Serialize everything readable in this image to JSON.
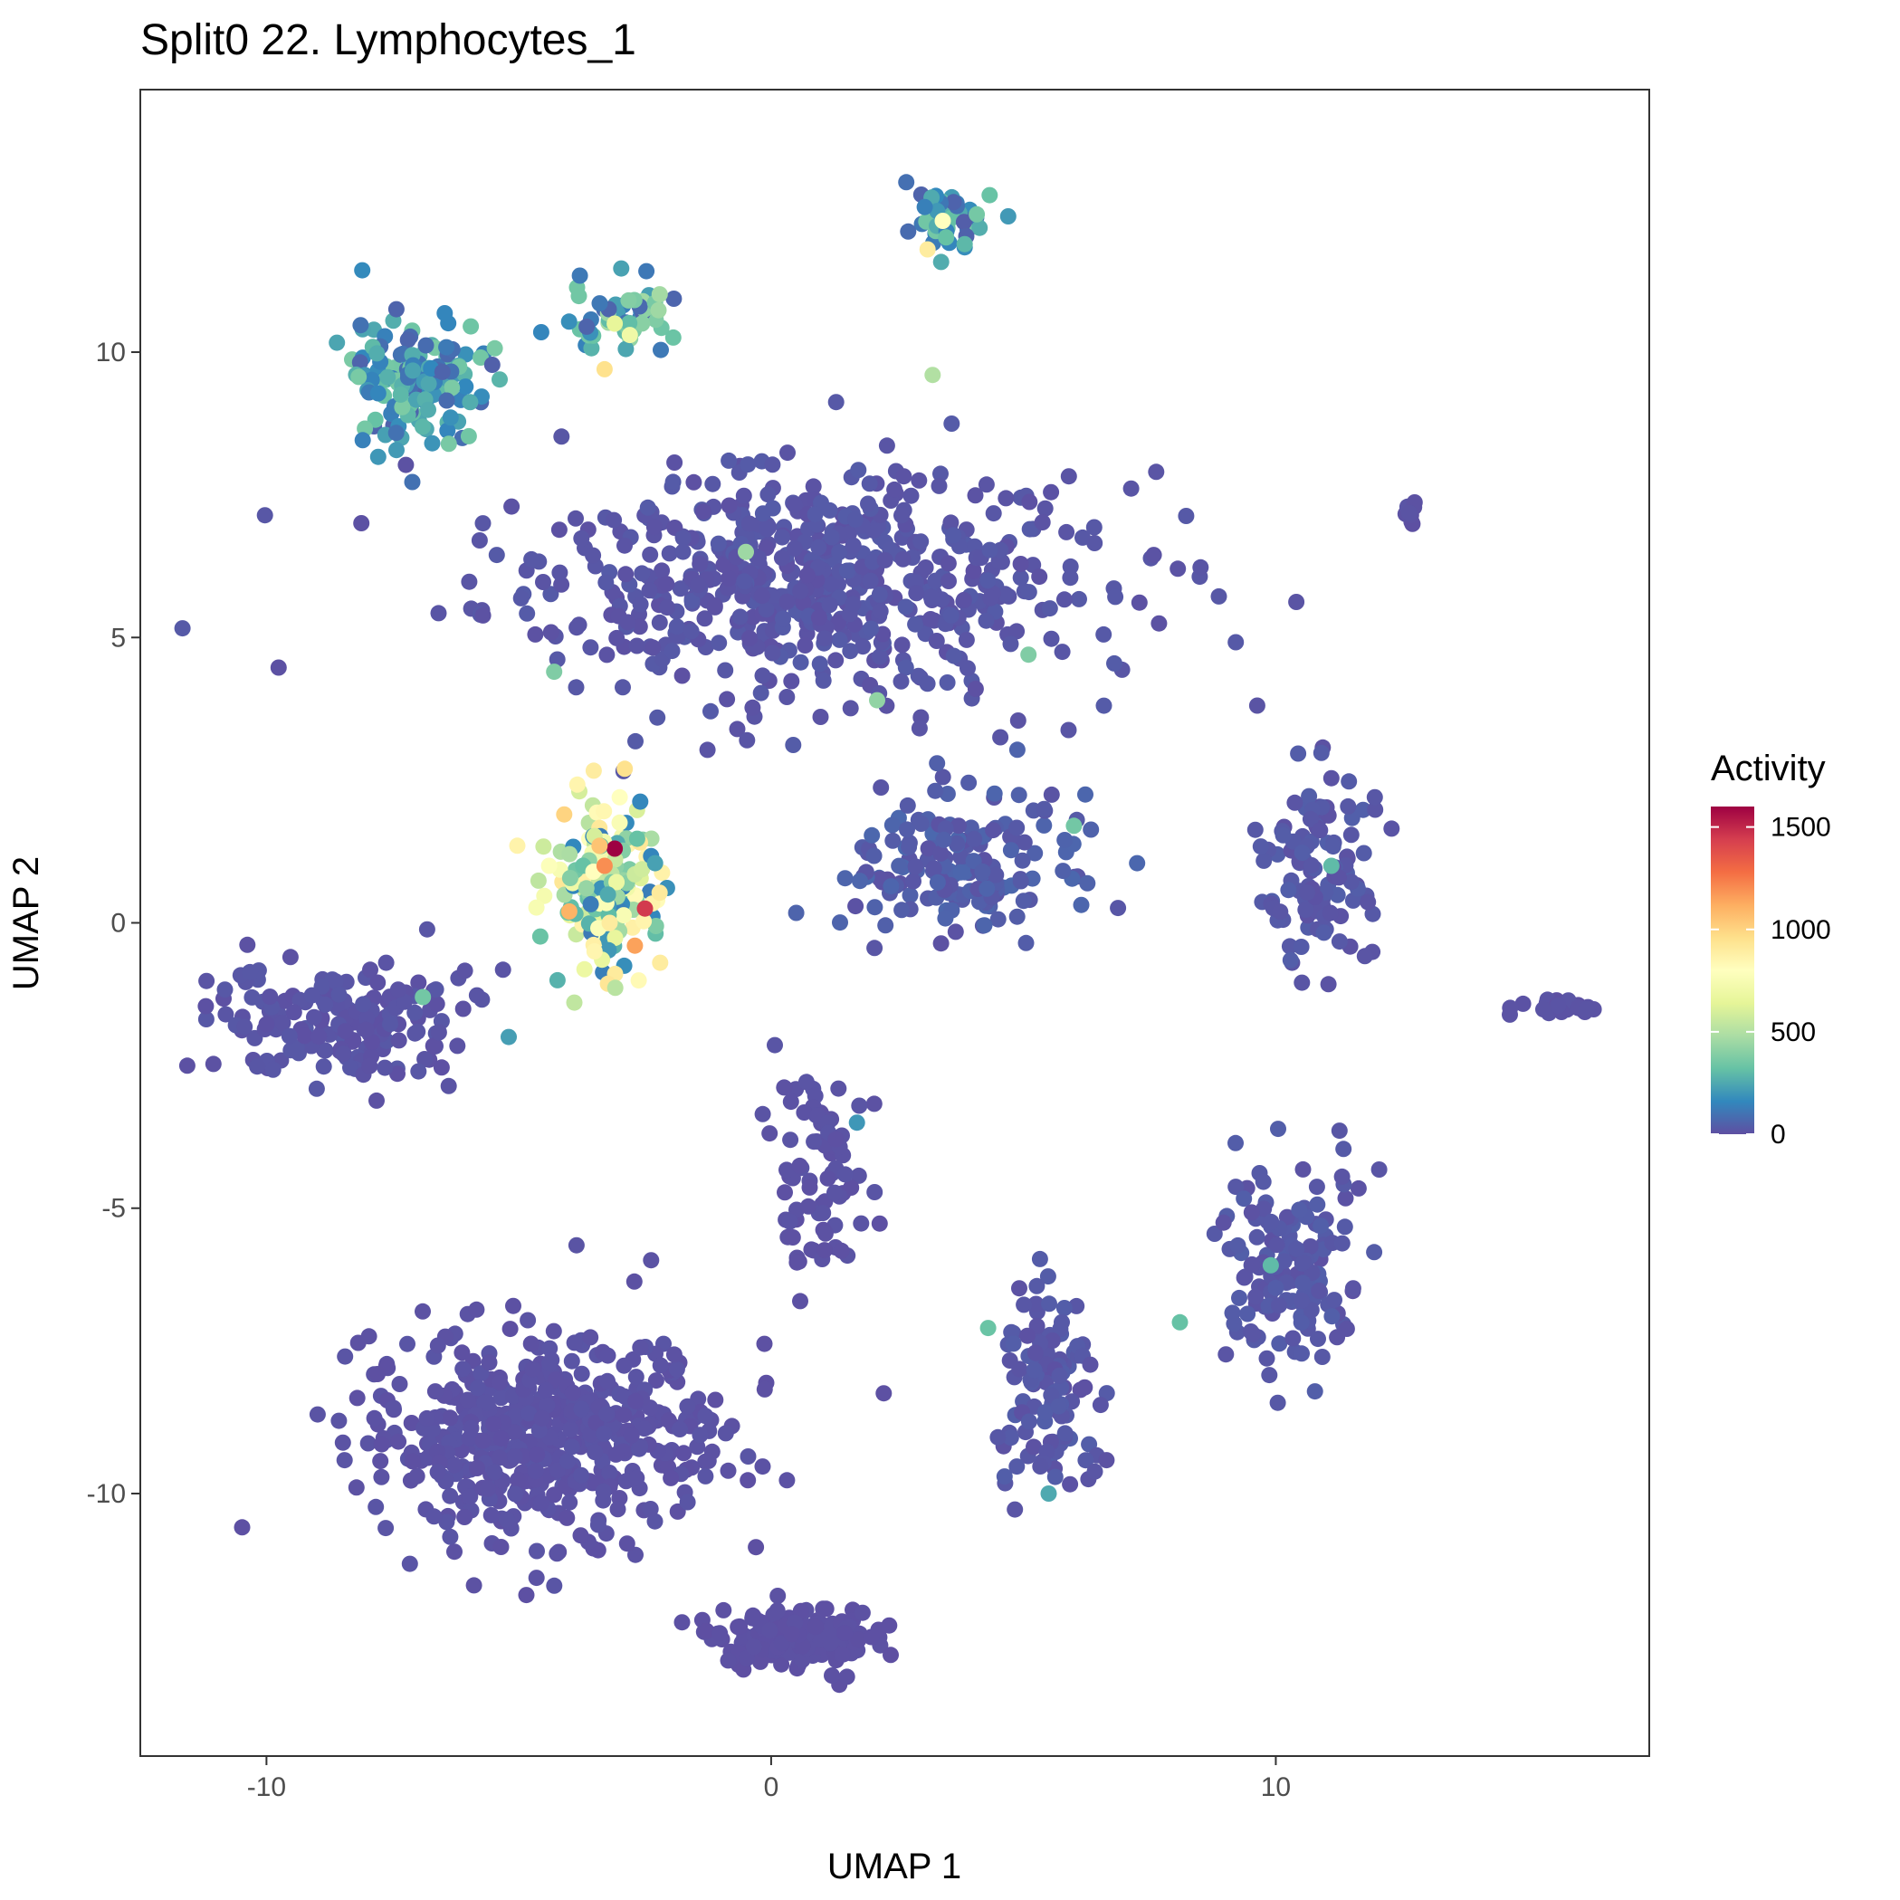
{
  "chart_data": {
    "type": "scatter",
    "title": "Split0 22. Lymphocytes_1",
    "xlabel": "UMAP 1",
    "ylabel": "UMAP 2",
    "xlim": [
      -12.5,
      17.4
    ],
    "ylim": [
      -14.6,
      14.6
    ],
    "xticks": [
      -10,
      0,
      10
    ],
    "xtick_labels": [
      "-10",
      "0",
      "10"
    ],
    "yticks": [
      -10,
      -5,
      0,
      5,
      10
    ],
    "ytick_labels": [
      "-10",
      "-5",
      "0",
      "5",
      "10"
    ],
    "grid": false,
    "color_variable": "Activity",
    "color_range": [
      0,
      1600
    ],
    "colorbar_ticks": [
      0,
      500,
      1000,
      1500
    ],
    "colorbar_tick_labels": [
      "0",
      "500",
      "1000",
      "1500"
    ],
    "colormap": "Spectral",
    "legend_position": "right",
    "clusters": [
      {
        "name": "central-large",
        "center": [
          0.5,
          6.0
        ],
        "spread": [
          5.5,
          1.8
        ],
        "n": 620,
        "activity": 20
      },
      {
        "name": "left-upper",
        "center": [
          -7.0,
          9.5
        ],
        "spread": [
          1.3,
          1.0
        ],
        "n": 140,
        "activity": 210
      },
      {
        "name": "upper-small",
        "center": [
          -3.0,
          10.6
        ],
        "spread": [
          0.9,
          0.6
        ],
        "n": 55,
        "activity": 260
      },
      {
        "name": "top-right-small",
        "center": [
          3.6,
          12.3
        ],
        "spread": [
          0.8,
          0.5
        ],
        "n": 45,
        "activity": 200
      },
      {
        "name": "hot-cluster",
        "center": [
          -3.2,
          0.7
        ],
        "spread": [
          1.0,
          1.3
        ],
        "n": 170,
        "activity": 520
      },
      {
        "name": "left-middle",
        "center": [
          -8.5,
          -1.8
        ],
        "spread": [
          2.3,
          0.9
        ],
        "n": 180,
        "activity": 15
      },
      {
        "name": "arm-mid",
        "center": [
          3.8,
          1.0
        ],
        "spread": [
          2.0,
          1.3
        ],
        "n": 170,
        "activity": 40
      },
      {
        "name": "stem",
        "center": [
          1.0,
          -4.5
        ],
        "spread": [
          0.8,
          2.0
        ],
        "n": 80,
        "activity": 10
      },
      {
        "name": "bottom-left",
        "center": [
          -4.5,
          -9.0
        ],
        "spread": [
          3.2,
          1.7
        ],
        "n": 520,
        "activity": 10
      },
      {
        "name": "bottom-blob",
        "center": [
          0.5,
          -12.5
        ],
        "spread": [
          1.4,
          0.5
        ],
        "n": 170,
        "activity": 5
      },
      {
        "name": "bottom-mid",
        "center": [
          5.5,
          -8.2
        ],
        "spread": [
          0.9,
          1.6
        ],
        "n": 110,
        "activity": 25
      },
      {
        "name": "bottom-right",
        "center": [
          10.3,
          -6.0
        ],
        "spread": [
          1.4,
          1.6
        ],
        "n": 150,
        "activity": 25
      },
      {
        "name": "right-middle",
        "center": [
          10.8,
          1.0
        ],
        "spread": [
          0.9,
          1.6
        ],
        "n": 110,
        "activity": 25
      },
      {
        "name": "far-right",
        "center": [
          15.7,
          -1.5
        ],
        "spread": [
          0.8,
          0.1
        ],
        "n": 25,
        "activity": 10
      },
      {
        "name": "small-right",
        "center": [
          12.7,
          7.2
        ],
        "spread": [
          0.2,
          0.2
        ],
        "n": 10,
        "activity": 10
      }
    ],
    "highlighted_points": [
      [
        -3.1,
        1.3,
        1600
      ],
      [
        -2.5,
        0.25,
        1450
      ],
      [
        -3.3,
        1.0,
        1200
      ],
      [
        -4.0,
        0.2,
        1100
      ],
      [
        -2.7,
        -0.4,
        1150
      ],
      [
        -3.4,
        1.35,
        1050
      ],
      [
        -4.1,
        1.9,
        1000
      ],
      [
        -2.9,
        2.7,
        950
      ],
      [
        -3.2,
        0.0,
        900
      ],
      [
        -2.2,
        -0.7,
        900
      ],
      [
        -3.5,
        -0.5,
        850
      ],
      [
        -3.0,
        2.2,
        800
      ],
      [
        -4.4,
        1.0,
        780
      ],
      [
        -3.3,
        9.7,
        950
      ],
      [
        3.1,
        11.8,
        900
      ],
      [
        3.4,
        12.3,
        800
      ],
      [
        -2.8,
        10.3,
        700
      ],
      [
        -3.1,
        10.5,
        650
      ],
      [
        3.2,
        9.6,
        500
      ],
      [
        -0.5,
        6.5,
        450
      ],
      [
        2.1,
        3.9,
        420
      ],
      [
        5.1,
        4.7,
        380
      ],
      [
        -4.3,
        4.4,
        380
      ],
      [
        -6.9,
        -1.3,
        350
      ],
      [
        1.7,
        -3.5,
        200
      ],
      [
        8.1,
        -7.0,
        320
      ],
      [
        4.3,
        -7.1,
        330
      ],
      [
        9.9,
        -6.0,
        300
      ],
      [
        5.5,
        -10.0,
        250
      ],
      [
        11.1,
        1.0,
        300
      ],
      [
        6.0,
        1.7,
        350
      ],
      [
        -5.2,
        -2.0,
        220
      ]
    ]
  }
}
